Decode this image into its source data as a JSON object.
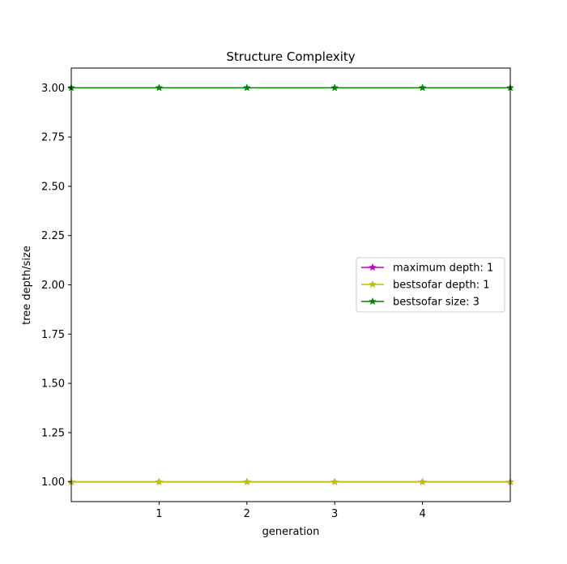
{
  "chart_data": {
    "type": "line",
    "title": "Structure Complexity",
    "xlabel": "generation",
    "ylabel": "tree depth/size",
    "x": [
      0,
      1,
      2,
      3,
      4,
      5
    ],
    "xlim": [
      0,
      5
    ],
    "ylim": [
      0.9,
      3.1
    ],
    "xticks": [
      1,
      2,
      3,
      4
    ],
    "xtick_labels": [
      "1",
      "2",
      "3",
      "4"
    ],
    "yticks": [
      1.0,
      1.25,
      1.5,
      1.75,
      2.0,
      2.25,
      2.5,
      2.75,
      3.0
    ],
    "ytick_labels": [
      "1.00",
      "1.25",
      "1.50",
      "1.75",
      "2.00",
      "2.25",
      "2.50",
      "2.75",
      "3.00"
    ],
    "grid": false,
    "legend_position": "center-right",
    "series": [
      {
        "name": "maximum depth: 1",
        "color": "#bf00bf",
        "marker": "star",
        "values": [
          1,
          1,
          1,
          1,
          1,
          1
        ]
      },
      {
        "name": "bestsofar depth: 1",
        "color": "#bfbf00",
        "marker": "star",
        "values": [
          1,
          1,
          1,
          1,
          1,
          1
        ]
      },
      {
        "name": "bestsofar size: 3",
        "color": "#008000",
        "marker": "star",
        "values": [
          3,
          3,
          3,
          3,
          3,
          3
        ]
      }
    ]
  }
}
